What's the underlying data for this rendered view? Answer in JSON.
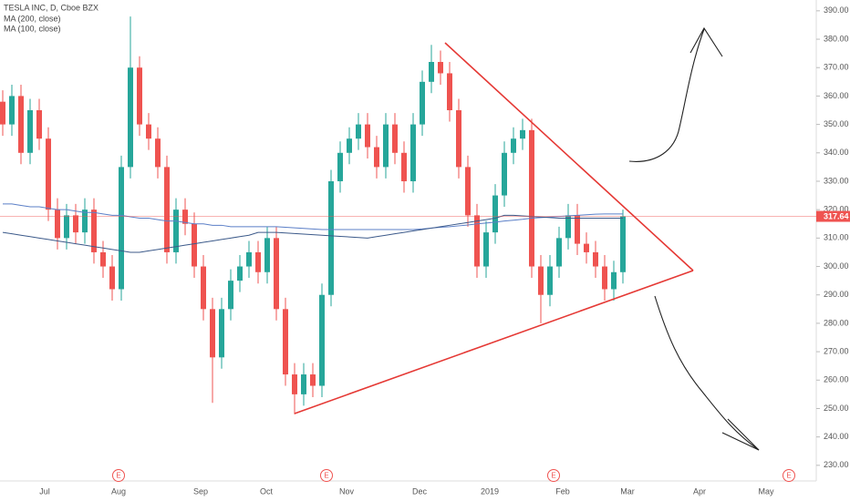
{
  "chart_data": {
    "type": "candlestick",
    "title": "TESLA INC, D, Cboe BZX",
    "up_color": "#26a69a",
    "down_color": "#ef5350",
    "open": [
      358,
      350,
      360,
      340,
      355,
      345,
      320,
      310,
      318,
      312,
      320,
      305,
      300,
      292,
      335,
      370,
      350,
      345,
      335,
      305,
      320,
      315,
      300,
      285,
      268,
      285,
      295,
      300,
      305,
      298,
      310,
      285,
      262,
      255,
      262,
      258,
      290,
      330,
      340,
      345,
      350,
      342,
      335,
      350,
      340,
      330,
      350,
      365,
      372,
      368,
      355,
      335,
      318,
      300,
      312,
      325,
      340,
      345,
      348,
      300,
      290,
      300,
      310,
      318,
      308,
      305,
      300,
      292,
      298
    ],
    "high": [
      362,
      364,
      364,
      359,
      359,
      349,
      324,
      322,
      322,
      324,
      324,
      309,
      304,
      339,
      388,
      374,
      354,
      349,
      339,
      324,
      324,
      319,
      304,
      289,
      289,
      299,
      304,
      309,
      309,
      314,
      314,
      289,
      266,
      266,
      266,
      294,
      334,
      344,
      349,
      354,
      354,
      346,
      354,
      354,
      344,
      354,
      369,
      378,
      376,
      372,
      359,
      339,
      322,
      316,
      329,
      344,
      349,
      352,
      352,
      304,
      304,
      314,
      322,
      322,
      312,
      309,
      304,
      302,
      320
    ],
    "low": [
      346,
      346,
      336,
      336,
      341,
      316,
      306,
      306,
      308,
      308,
      301,
      296,
      288,
      288,
      331,
      346,
      341,
      331,
      301,
      301,
      311,
      296,
      281,
      252,
      264,
      281,
      291,
      296,
      294,
      294,
      281,
      258,
      248,
      251,
      254,
      254,
      286,
      326,
      336,
      341,
      338,
      331,
      331,
      336,
      326,
      326,
      346,
      361,
      364,
      351,
      331,
      314,
      296,
      296,
      308,
      321,
      336,
      341,
      296,
      280,
      286,
      296,
      306,
      304,
      301,
      296,
      288,
      288,
      294
    ],
    "close": [
      350,
      360,
      340,
      355,
      345,
      320,
      310,
      318,
      312,
      320,
      305,
      300,
      292,
      335,
      370,
      350,
      345,
      335,
      305,
      320,
      315,
      300,
      285,
      268,
      285,
      295,
      300,
      305,
      298,
      310,
      285,
      262,
      255,
      262,
      258,
      290,
      330,
      340,
      345,
      350,
      342,
      335,
      350,
      340,
      330,
      350,
      365,
      372,
      368,
      355,
      335,
      318,
      300,
      312,
      325,
      340,
      345,
      348,
      300,
      290,
      300,
      310,
      318,
      308,
      305,
      300,
      292,
      298,
      317.64
    ],
    "last_price_label": "317.64",
    "series": [
      {
        "name": "MA (200, close)",
        "color": "#5b7fc7",
        "values": [
          322,
          322,
          321.5,
          321,
          321,
          320.5,
          320,
          320,
          319.5,
          319,
          319,
          318.5,
          318,
          318,
          317.5,
          317,
          317,
          316.5,
          316,
          316,
          315.5,
          315,
          315,
          314.5,
          314.5,
          314,
          314,
          314,
          314,
          314,
          314,
          313.8,
          313.6,
          313.4,
          313.2,
          313,
          313,
          313,
          313,
          313,
          313,
          313,
          313,
          313,
          313,
          313,
          313.2,
          313.5,
          313.8,
          314,
          314.3,
          314.6,
          315,
          315.3,
          315.6,
          316,
          316.3,
          316.6,
          317,
          317.2,
          317.4,
          317.6,
          317.8,
          318,
          318.2,
          318.4,
          318.5,
          318.5,
          318.5
        ]
      },
      {
        "name": "MA (100, close)",
        "color": "#3c5a8a",
        "values": [
          312,
          311.5,
          311,
          310.5,
          310,
          309.5,
          309,
          308.5,
          308,
          307.5,
          307,
          306.5,
          306,
          305.5,
          305,
          305,
          305.5,
          306,
          306.5,
          307,
          307.5,
          308,
          308.5,
          309,
          309.5,
          310,
          310.5,
          311,
          312,
          312,
          312,
          311.8,
          311.6,
          311.4,
          311.2,
          311,
          310.8,
          310.6,
          310.4,
          310.2,
          310,
          310.5,
          311,
          311.5,
          312,
          312.5,
          313,
          313.5,
          314,
          314.5,
          315,
          315.5,
          316,
          316.5,
          317,
          318,
          318,
          317.8,
          317.6,
          317.4,
          317.2,
          317,
          317,
          317,
          317,
          317,
          317,
          317,
          317
        ]
      }
    ],
    "x_labels": [
      "Jul",
      "Aug",
      "Sep",
      "Oct",
      "Nov",
      "Dec",
      "2019",
      "Feb",
      "Mar",
      "Apr",
      "May"
    ],
    "earnings": [
      "E",
      "E",
      "E",
      "E"
    ],
    "ylim": [
      224.5,
      393.8
    ],
    "yticks": [
      {
        "value": 230,
        "label": "230.00"
      },
      {
        "value": 240,
        "label": "240.00"
      },
      {
        "value": 250,
        "label": "250.00"
      },
      {
        "value": 260,
        "label": "260.00"
      },
      {
        "value": 270,
        "label": "270.00"
      },
      {
        "value": 280,
        "label": "280.00"
      },
      {
        "value": 290,
        "label": "290.00"
      },
      {
        "value": 300,
        "label": "300.00"
      },
      {
        "value": 310,
        "label": "310.00"
      },
      {
        "value": 320,
        "label": "320.00"
      },
      {
        "value": 330,
        "label": "330.00"
      },
      {
        "value": 340,
        "label": "340.00"
      },
      {
        "value": 350,
        "label": "350.00"
      },
      {
        "value": 360,
        "label": "360.00"
      },
      {
        "value": 370,
        "label": "370.00"
      },
      {
        "value": 380,
        "label": "380.00"
      },
      {
        "value": 390,
        "label": "390.00"
      }
    ]
  }
}
